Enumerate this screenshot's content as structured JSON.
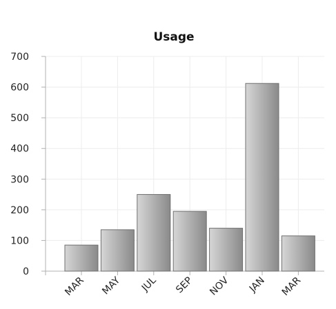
{
  "chart_data": {
    "type": "bar",
    "title": "Usage",
    "xlabel": "",
    "ylabel": "",
    "categories": [
      "MAR",
      "MAY",
      "JUL",
      "SEP",
      "NOV",
      "JAN",
      "MAR"
    ],
    "values": [
      85,
      135,
      250,
      195,
      140,
      612,
      115
    ],
    "ylim": [
      0,
      700
    ],
    "yticks": [
      "0",
      "100",
      "200",
      "300",
      "400",
      "500",
      "600",
      "700"
    ],
    "grid": true,
    "legend": "none",
    "colors": {
      "bar_light": "#d6d6d6",
      "bar_dark": "#8a8a8a",
      "bar_edge": "#6f6f6f",
      "axis": "#b0b0b0",
      "grid": "#ececec"
    }
  }
}
